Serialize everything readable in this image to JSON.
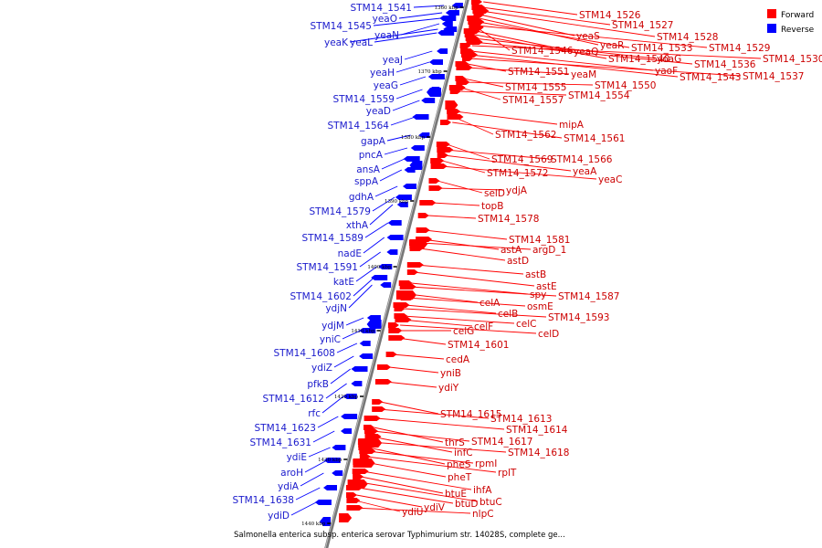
{
  "legend": [
    {
      "label": "Forward",
      "color": "#ff0000"
    },
    {
      "label": "Reverse",
      "color": "#0000ff"
    }
  ],
  "caption": "Salmonella enterica subsp. enterica serovar Typhimurium str. 14028S, complete ge...",
  "colors": {
    "forward": "#ff0000",
    "reverse": "#0000ff",
    "forward_label": "#cc0000",
    "reverse_label": "#1a1acc",
    "backbone": "#777777"
  },
  "ticks": [
    "1360 kbp",
    "1370 kbp",
    "1380 kbp",
    "1390 kbp",
    "1400 kbp",
    "1410 kbp",
    "1420 kbp",
    "1430 kbp",
    "1440 kbp"
  ],
  "forward_labels": [
    "STM14_1526",
    "STM14_1527",
    "STM14_1528",
    "yeaS",
    "yeaR",
    "STM14_1533",
    "STM14_1529",
    "STM14_1546",
    "yeaQ",
    "STM14_1540",
    "yoaG",
    "STM14_1536",
    "STM14_1530",
    "yaoF",
    "STM14_1543",
    "STM14_1537",
    "STM14_1551",
    "yeaM",
    "STM14_1555",
    "STM14_1550",
    "STM14_1557",
    "STM14_1554",
    "mipA",
    "STM14_1562",
    "STM14_1561",
    "STM14_1569",
    "STM14_1566",
    "yeaA",
    "STM14_1572",
    "yeaC",
    "selD",
    "ydjA",
    "topB",
    "STM14_1578",
    "STM14_1581",
    "astA",
    "argD_1",
    "astD",
    "astB",
    "astE",
    "spy",
    "STM14_1587",
    "celA",
    "osmE",
    "celB",
    "STM14_1593",
    "celC",
    "celF",
    "celD",
    "celG",
    "STM14_1601",
    "cedA",
    "yniB",
    "ydiY",
    "STM14_1615",
    "STM14_1613",
    "STM14_1614",
    "thrS",
    "STM14_1617",
    "infC",
    "STM14_1618",
    "pheS",
    "rpmI",
    "rplT",
    "pheT",
    "ihfA",
    "btuE",
    "btuC",
    "btuD",
    "ydiV",
    "ydiU",
    "nlpC"
  ],
  "reverse_labels": [
    "STM14_1541",
    "yeaO",
    "STM14_1545",
    "yeaN",
    "yeaK",
    "yeaL",
    "yeaJ",
    "yeaH",
    "yeaG",
    "STM14_1559",
    "yeaD",
    "STM14_1564",
    "gapA",
    "pncA",
    "ansA",
    "sppA",
    "gdhA",
    "STM14_1579",
    "xthA",
    "STM14_1589",
    "nadE",
    "STM14_1591",
    "katE",
    "STM14_1602",
    "ydjN",
    "ydjM",
    "yniC",
    "STM14_1608",
    "ydiZ",
    "pfkB",
    "STM14_1612",
    "rfc",
    "STM14_1623",
    "STM14_1631",
    "ydiE",
    "aroH",
    "ydiA",
    "STM14_1638",
    "ydiD"
  ]
}
